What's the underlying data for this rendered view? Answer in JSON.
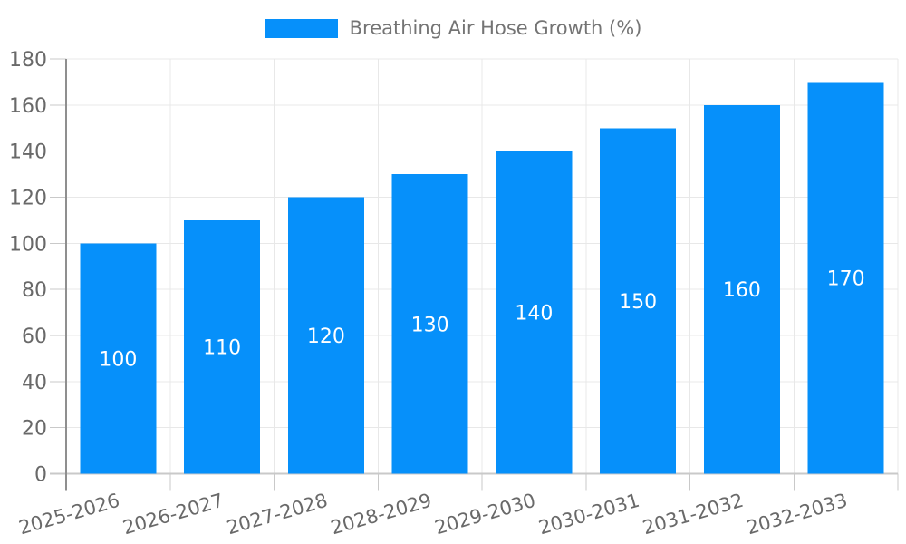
{
  "chart_data": {
    "type": "bar",
    "title": "",
    "legend": "Breathing Air Hose Growth (%)",
    "legend_position": "top",
    "categories": [
      "2025-2026",
      "2026-2027",
      "2027-2028",
      "2028-2029",
      "2029-2030",
      "2030-2031",
      "2031-2032",
      "2032-2033"
    ],
    "values": [
      100,
      110,
      120,
      130,
      140,
      150,
      160,
      170
    ],
    "bar_value_labels": [
      "100",
      "110",
      "120",
      "130",
      "140",
      "150",
      "160",
      "170"
    ],
    "xlabel": "",
    "ylabel": "",
    "ylim": [
      0,
      180
    ],
    "y_tick_step": 20,
    "y_ticks": [
      0,
      20,
      40,
      60,
      80,
      100,
      120,
      140,
      160,
      180
    ],
    "x_label_rotation_deg": -16,
    "grid": true,
    "style": {
      "bar_color": "#0690fa",
      "bar_label_color": "#ffffff",
      "grid_color": "#e8e8e8",
      "tick_color": "#c9c9c9",
      "x_axis_line_color": "#c9c9c9",
      "y_axis_line_color": "#8f8f8f",
      "axis_text_color": "#696969",
      "legend_text_color": "#747474",
      "background_color": "#ffffff"
    }
  }
}
